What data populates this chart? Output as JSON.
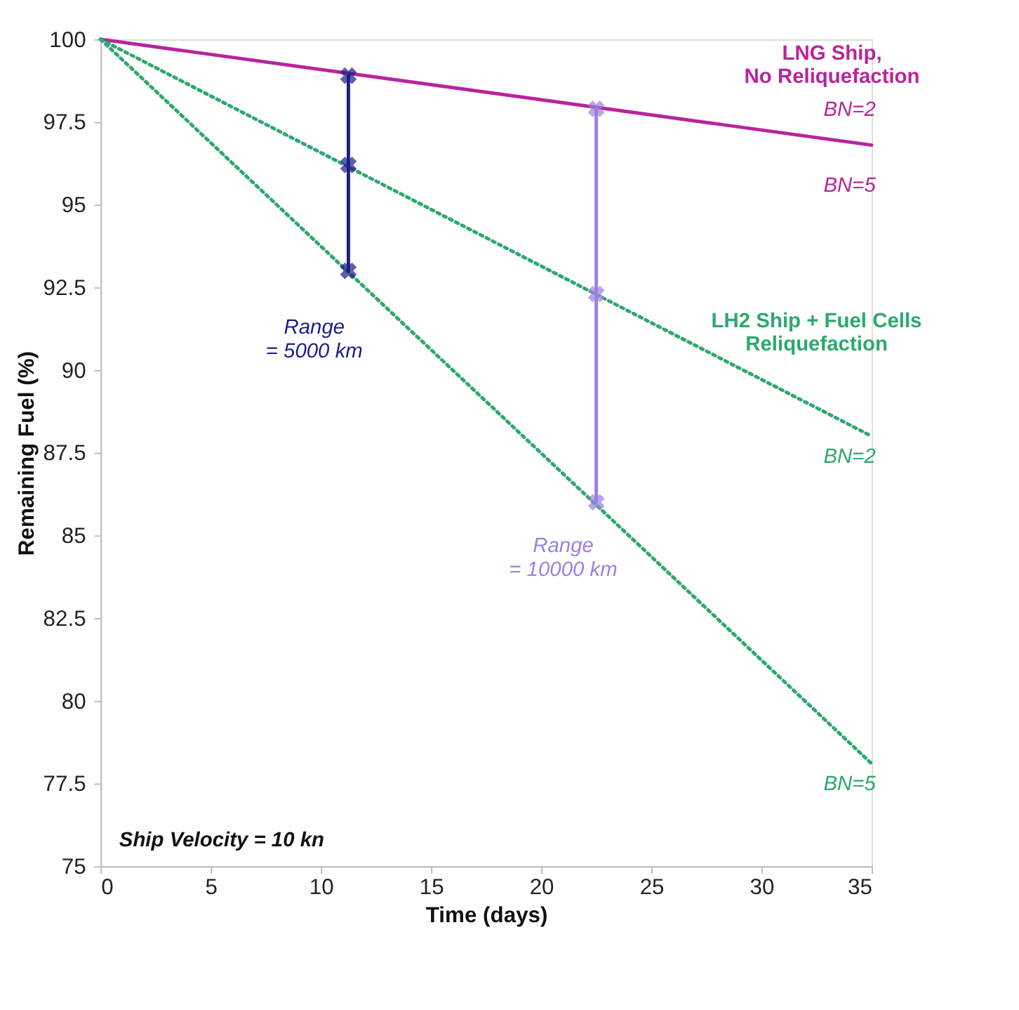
{
  "chart_data": {
    "type": "line",
    "xlabel": "Time (days)",
    "ylabel": "Remaining Fuel (%)",
    "xlim": [
      0,
      35
    ],
    "xticks": [
      0,
      5,
      10,
      15,
      20,
      25,
      30,
      35
    ],
    "ylim": [
      75,
      100
    ],
    "yticks": [
      75,
      77.5,
      80,
      82.5,
      85,
      87.5,
      90,
      92.5,
      95,
      97.5,
      100
    ],
    "grid": false,
    "series": [
      {
        "color": "#b8249c",
        "line_style": "solid",
        "marker": "none",
        "x": [
          0,
          35
        ],
        "values": [
          100,
          96.8
        ]
      },
      {
        "color": "#2ea86e",
        "line_style": "dotted",
        "marker": "none",
        "x": [
          0,
          35
        ],
        "values": [
          100,
          88.0
        ]
      },
      {
        "color": "#2ea86e",
        "line_style": "dotted",
        "marker": "none",
        "x": [
          0,
          35
        ],
        "values": [
          100,
          78.1
        ]
      },
      {
        "color": "#1c1c86",
        "line_style": "solid",
        "marker": "cross",
        "x": [
          11.25,
          11.25,
          11.25
        ],
        "values": [
          98.9,
          96.2,
          93.0
        ]
      },
      {
        "color": "#9b80e0",
        "line_style": "solid",
        "marker": "cross",
        "x": [
          22.5,
          22.5,
          22.5
        ],
        "values": [
          97.9,
          92.3,
          86.0
        ]
      }
    ],
    "annotations": [
      "LNG Ship,\nNo Reliquefaction",
      "BN=2",
      "BN=5",
      "LH2 Ship + Fuel Cells\nReliquefaction",
      "BN=2",
      "BN=5",
      "Range\n= 5000 km",
      "Range\n= 10000 km",
      "Ship Velocity = 10 kn"
    ]
  }
}
